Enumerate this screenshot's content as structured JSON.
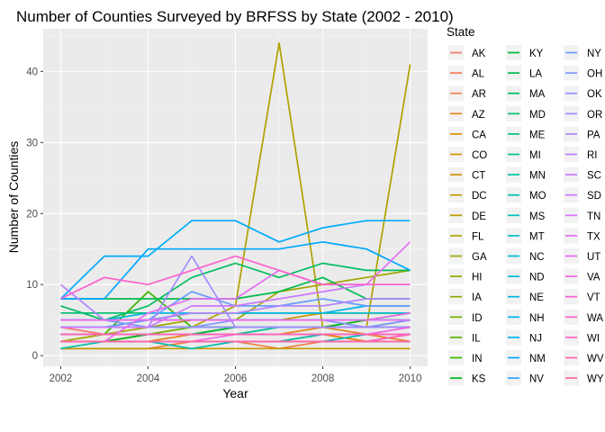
{
  "chart_data": {
    "type": "line",
    "title": "Number of Counties Surveyed by BRFSS by State (2002 - 2010)",
    "xlabel": "Year",
    "ylabel": "Number of Counties",
    "xlim": [
      2001.6,
      2010.4
    ],
    "ylim": [
      -1.5,
      46
    ],
    "x_ticks": [
      2002,
      2004,
      2006,
      2008,
      2010
    ],
    "y_ticks": [
      0,
      10,
      20,
      30,
      40
    ],
    "grid": true,
    "legend_title": "State",
    "legend_position": "right",
    "x": [
      2002,
      2003,
      2004,
      2005,
      2006,
      2007,
      2008,
      2009,
      2010
    ],
    "series": [
      {
        "name": "AK",
        "color": "#F8766D",
        "values": [
          4,
          3,
          3,
          3,
          3,
          3,
          3,
          2,
          2
        ]
      },
      {
        "name": "AL",
        "color": "#F37B59",
        "values": [
          1,
          1,
          1,
          2,
          2,
          2,
          3,
          3,
          3
        ]
      },
      {
        "name": "AR",
        "color": "#ED8141",
        "values": [
          1,
          1,
          1,
          2,
          2,
          1,
          2,
          2,
          3
        ]
      },
      {
        "name": "AZ",
        "color": "#E7861B",
        "values": [
          2,
          2,
          2,
          3,
          3,
          3,
          4,
          3,
          2
        ]
      },
      {
        "name": "CA",
        "color": "#DF8C00",
        "values": [
          2,
          2,
          3,
          3,
          3,
          3,
          3,
          2,
          2
        ]
      },
      {
        "name": "CO",
        "color": "#D89000",
        "values": [
          5,
          5,
          5,
          6,
          6,
          6,
          6,
          6,
          6
        ]
      },
      {
        "name": "CT",
        "color": "#CF9400",
        "values": [
          5,
          5,
          5,
          5,
          5,
          5,
          6,
          6,
          6
        ]
      },
      {
        "name": "DC",
        "color": "#C49A00",
        "values": [
          1,
          1,
          1,
          1,
          1,
          1,
          1,
          1,
          1
        ]
      },
      {
        "name": "DE",
        "color": "#BB9D00",
        "values": [
          3,
          3,
          3,
          3,
          3,
          3,
          3,
          3,
          3
        ]
      },
      {
        "name": "FL",
        "color": "#B0A100",
        "values": [
          4,
          4,
          4,
          4,
          7,
          44,
          4,
          4,
          41
        ]
      },
      {
        "name": "GA",
        "color": "#A3A500",
        "values": [
          2,
          3,
          4,
          5,
          5,
          9,
          10,
          11,
          12
        ]
      },
      {
        "name": "HI",
        "color": "#95A900",
        "values": [
          3,
          3,
          3,
          3,
          3,
          3,
          3,
          3,
          3
        ]
      },
      {
        "name": "IA",
        "color": "#85AD00",
        "values": [
          2,
          2,
          3,
          3,
          4,
          4,
          4,
          4,
          4
        ]
      },
      {
        "name": "ID",
        "color": "#72B000",
        "values": [
          3,
          3,
          3,
          4,
          4,
          4,
          4,
          5,
          5
        ]
      },
      {
        "name": "IL",
        "color": "#5BB300",
        "values": [
          4,
          4,
          4,
          4,
          4,
          4,
          4,
          4,
          4
        ]
      },
      {
        "name": "IN",
        "color": "#39B600",
        "values": [
          3,
          3,
          9,
          4,
          4,
          4,
          4,
          4,
          5
        ]
      },
      {
        "name": "KS",
        "color": "#00B81F",
        "values": [
          2,
          2,
          3,
          3,
          4,
          4,
          4,
          5,
          6
        ]
      },
      {
        "name": "KY",
        "color": "#00BA38",
        "values": [
          3,
          3,
          3,
          3,
          4,
          4,
          4,
          4,
          4
        ]
      },
      {
        "name": "LA",
        "color": "#00BB4E",
        "values": [
          8,
          8,
          8,
          8,
          8,
          9,
          11,
          8,
          8
        ]
      },
      {
        "name": "MA",
        "color": "#00BD5F",
        "values": [
          7,
          5,
          7,
          11,
          13,
          11,
          13,
          12,
          12
        ]
      },
      {
        "name": "MD",
        "color": "#00BE71",
        "values": [
          6,
          6,
          6,
          6,
          6,
          6,
          6,
          6,
          6
        ]
      },
      {
        "name": "ME",
        "color": "#00C081",
        "values": [
          4,
          4,
          5,
          5,
          5,
          5,
          5,
          5,
          5
        ]
      },
      {
        "name": "MI",
        "color": "#00C08F",
        "values": [
          3,
          3,
          3,
          3,
          3,
          4,
          4,
          4,
          4
        ]
      },
      {
        "name": "MN",
        "color": "#00C19E",
        "values": [
          4,
          4,
          4,
          4,
          4,
          4,
          4,
          4,
          4
        ]
      },
      {
        "name": "MO",
        "color": "#00C1AB",
        "values": [
          1,
          2,
          2,
          1,
          2,
          2,
          3,
          3,
          3
        ]
      },
      {
        "name": "MS",
        "color": "#00C0B8",
        "values": [
          2,
          2,
          2,
          2,
          2,
          2,
          2,
          3,
          3
        ]
      },
      {
        "name": "MT",
        "color": "#00BFC4",
        "values": [
          5,
          5,
          5,
          5,
          5,
          5,
          5,
          5,
          5
        ]
      },
      {
        "name": "NC",
        "color": "#00BDD0",
        "values": [
          5,
          5,
          5,
          6,
          6,
          6,
          6,
          6,
          6
        ]
      },
      {
        "name": "ND",
        "color": "#00BADB",
        "values": [
          3,
          3,
          3,
          3,
          3,
          3,
          3,
          3,
          3
        ]
      },
      {
        "name": "NE",
        "color": "#00B6E5",
        "values": [
          5,
          5,
          6,
          6,
          6,
          6,
          6,
          7,
          7
        ]
      },
      {
        "name": "NH",
        "color": "#00B2EF",
        "values": [
          5,
          5,
          5,
          5,
          5,
          5,
          5,
          5,
          5
        ]
      },
      {
        "name": "NJ",
        "color": "#00ADF8",
        "values": [
          8,
          14,
          14,
          19,
          19,
          16,
          18,
          19,
          19
        ]
      },
      {
        "name": "NM",
        "color": "#00A7FF",
        "values": [
          8,
          8,
          15,
          15,
          15,
          15,
          16,
          15,
          12
        ]
      },
      {
        "name": "NV",
        "color": "#35A2FF",
        "values": [
          2,
          2,
          2,
          2,
          2,
          2,
          2,
          2,
          2
        ]
      },
      {
        "name": "NY",
        "color": "#679BFF",
        "values": [
          4,
          4,
          5,
          9,
          7,
          7,
          8,
          7,
          7
        ]
      },
      {
        "name": "OH",
        "color": "#8295FF",
        "values": [
          5,
          5,
          4,
          4,
          5,
          5,
          5,
          4,
          5
        ]
      },
      {
        "name": "OK",
        "color": "#9590FF",
        "values": [
          4,
          4,
          4,
          4,
          4,
          4,
          4,
          4,
          4
        ]
      },
      {
        "name": "OR",
        "color": "#A58AFF",
        "values": [
          4,
          4,
          4,
          14,
          4,
          4,
          4,
          4,
          4
        ]
      },
      {
        "name": "PA",
        "color": "#B385FF",
        "values": [
          10,
          5,
          5,
          6,
          6,
          7,
          7,
          8,
          8
        ]
      },
      {
        "name": "RI",
        "color": "#C07FFF",
        "values": [
          5,
          5,
          5,
          5,
          5,
          5,
          5,
          5,
          5
        ]
      },
      {
        "name": "SC",
        "color": "#CB79FF",
        "values": [
          4,
          4,
          4,
          7,
          7,
          8,
          9,
          10,
          10
        ]
      },
      {
        "name": "SD",
        "color": "#D575FE",
        "values": [
          2,
          2,
          2,
          2,
          2,
          2,
          2,
          2,
          2
        ]
      },
      {
        "name": "TN",
        "color": "#DE71F9",
        "values": [
          5,
          5,
          5,
          5,
          5,
          5,
          5,
          5,
          5
        ]
      },
      {
        "name": "TX",
        "color": "#E76BF3",
        "values": [
          2,
          2,
          6,
          8,
          8,
          12,
          10,
          10,
          16
        ]
      },
      {
        "name": "UT",
        "color": "#EE67EB",
        "values": [
          5,
          5,
          5,
          5,
          5,
          5,
          5,
          5,
          6
        ]
      },
      {
        "name": "VA",
        "color": "#F464E2",
        "values": [
          2,
          2,
          2,
          2,
          3,
          3,
          3,
          3,
          4
        ]
      },
      {
        "name": "VT",
        "color": "#F962D8",
        "values": [
          3,
          3,
          3,
          3,
          3,
          3,
          3,
          3,
          3
        ]
      },
      {
        "name": "WA",
        "color": "#FC61CD",
        "values": [
          8,
          11,
          10,
          12,
          14,
          12,
          10,
          10,
          10
        ]
      },
      {
        "name": "WI",
        "color": "#FF61C1",
        "values": [
          2,
          2,
          2,
          2,
          2,
          2,
          2,
          2,
          3
        ]
      },
      {
        "name": "WV",
        "color": "#FF64B3",
        "values": [
          3,
          3,
          3,
          3,
          3,
          3,
          3,
          3,
          3
        ]
      },
      {
        "name": "WY",
        "color": "#FF67A4",
        "values": [
          2,
          2,
          2,
          2,
          2,
          2,
          2,
          2,
          2
        ]
      }
    ]
  }
}
